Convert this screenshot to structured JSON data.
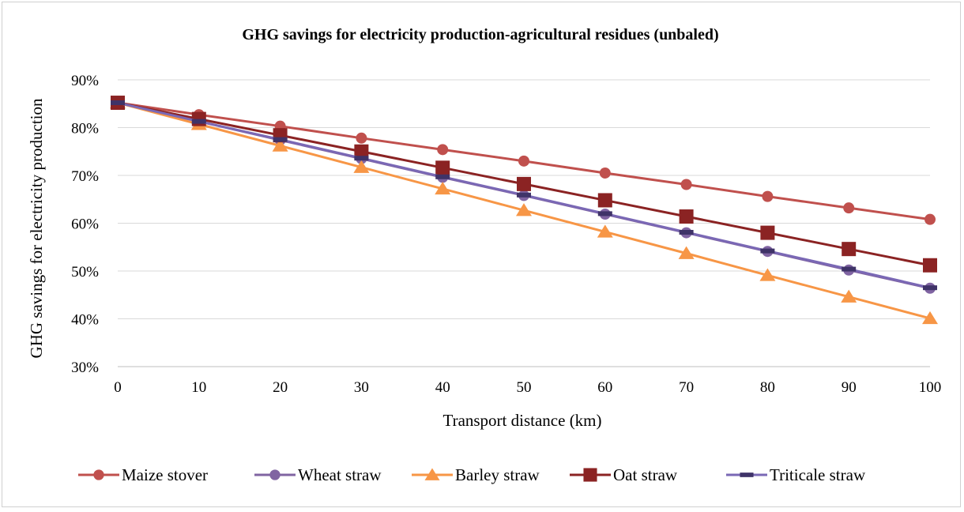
{
  "chart_data": {
    "type": "line",
    "title": "GHG savings for electricity production-agricultural residues (unbaled)",
    "xlabel": "Transport distance (km)",
    "ylabel": "GHG savings for electricity production",
    "x": [
      0,
      10,
      20,
      30,
      40,
      50,
      60,
      70,
      80,
      90,
      100
    ],
    "x_tick_labels": [
      "0",
      "10",
      "20",
      "30",
      "40",
      "50",
      "60",
      "70",
      "80",
      "90",
      "100"
    ],
    "ylim": [
      0.3,
      0.9
    ],
    "y_tick_labels": [
      "30%",
      "40%",
      "50%",
      "60%",
      "70%",
      "80%",
      "90%"
    ],
    "grid": "horizontal",
    "legend_position": "bottom",
    "series": [
      {
        "name": "Maize stover",
        "color": "#c0504d",
        "marker": "circle",
        "values": [
          0.852,
          0.827,
          0.803,
          0.778,
          0.754,
          0.73,
          0.705,
          0.681,
          0.656,
          0.632,
          0.608
        ]
      },
      {
        "name": "Wheat straw",
        "color": "#8064a2",
        "marker": "circle",
        "values": [
          0.852,
          0.813,
          0.774,
          0.735,
          0.696,
          0.658,
          0.619,
          0.58,
          0.541,
          0.502,
          0.464
        ]
      },
      {
        "name": "Barley straw",
        "color": "#f79646",
        "marker": "triangle",
        "values": [
          0.852,
          0.807,
          0.762,
          0.717,
          0.672,
          0.627,
          0.582,
          0.537,
          0.491,
          0.446,
          0.401
        ]
      },
      {
        "name": "Oat straw",
        "color": "#8b2323",
        "marker": "square",
        "values": [
          0.852,
          0.818,
          0.784,
          0.75,
          0.716,
          0.682,
          0.648,
          0.614,
          0.58,
          0.546,
          0.512
        ]
      },
      {
        "name": "Triticale straw",
        "color": "#7a68b5",
        "marker": "dash",
        "values": [
          0.852,
          0.813,
          0.775,
          0.736,
          0.697,
          0.659,
          0.62,
          0.581,
          0.542,
          0.504,
          0.465
        ]
      }
    ]
  }
}
